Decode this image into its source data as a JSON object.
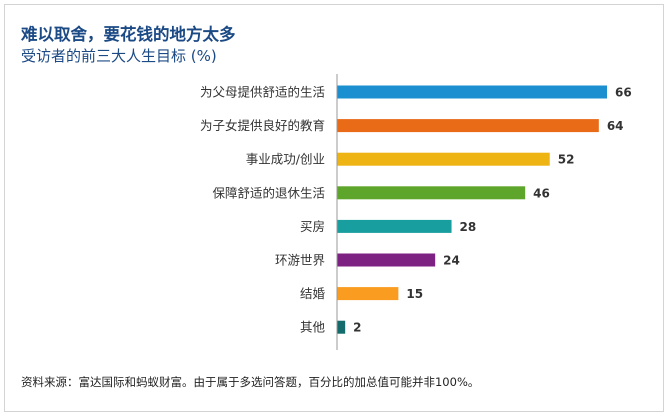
{
  "header": {
    "title": "难以取舍，要花钱的地方太多",
    "subtitle": "受访者的前三大人生目标 (%)"
  },
  "footnote": "资料来源：富达国际和蚂蚁财富。由于属于多选问答题，百分比的加总值可能并非100%。",
  "chart_data": {
    "type": "bar",
    "orientation": "horizontal",
    "title": "难以取舍，要花钱的地方太多",
    "subtitle": "受访者的前三大人生目标 (%)",
    "categories": [
      "为父母提供舒适的生活",
      "为子女提供良好的教育",
      "事业成功/创业",
      "保障舒适的退休生活",
      "买房",
      "环游世界",
      "结婚",
      "其他"
    ],
    "values": [
      66,
      64,
      52,
      46,
      28,
      24,
      15,
      2
    ],
    "colors": [
      "#1b8fd0",
      "#e96a17",
      "#eeb414",
      "#5ea52c",
      "#199e9f",
      "#7d2183",
      "#f99c20",
      "#136b6c"
    ],
    "xlim": [
      0,
      70
    ],
    "grid": false,
    "legend": "none"
  }
}
